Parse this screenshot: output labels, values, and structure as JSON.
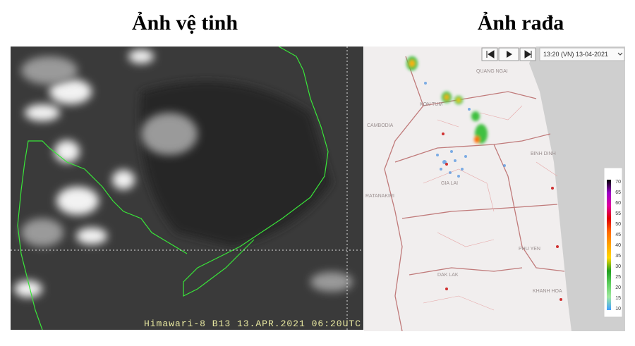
{
  "satellite": {
    "title": "Ảnh vệ tinh",
    "caption": "Himawari-8 B13 13.APR.2021 06:20UTC"
  },
  "radar": {
    "title": "Ảnh rađa",
    "timestamp": "13:20 (VN) 13-04-2021",
    "places": [
      "QUANG NGAI",
      "KON TUM",
      "CAMBODIA",
      "BINH DINH",
      "GIA LAI",
      "RATANAKIRI",
      "PHU YEN",
      "DAK LAK",
      "KHANH HOA"
    ],
    "legend": {
      "levels": [
        70,
        65,
        60,
        55,
        50,
        45,
        40,
        35,
        30,
        25,
        20,
        15,
        10
      ]
    }
  }
}
